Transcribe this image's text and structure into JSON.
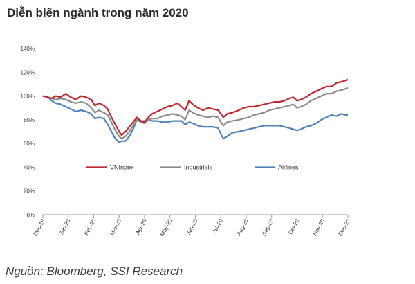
{
  "header": {
    "title": "Diễn biến ngành trong năm 2020"
  },
  "footer": {
    "source": "Nguồn: Bloomberg, SSI Research"
  },
  "chart_data": {
    "type": "line",
    "title": "Diễn biến ngành trong năm 2020",
    "xlabel": "",
    "ylabel": "",
    "x_ticks": [
      "Dec-19",
      "Jan-20",
      "Feb-20",
      "Mar-20",
      "Apr-20",
      "May-20",
      "Jun-20",
      "Jul-20",
      "Aug-20",
      "Sep-20",
      "Oct-20",
      "Nov-20",
      "Dec-20"
    ],
    "y_ticks": [
      "0%",
      "20%",
      "40%",
      "60%",
      "80%",
      "100%",
      "120%",
      "140%"
    ],
    "ylim": [
      0,
      140
    ],
    "grid": false,
    "legend_position": "center",
    "series": [
      {
        "name": "VNIndex",
        "color": "#c0272d",
        "points": [
          [
            0,
            100
          ],
          [
            0.2,
            99
          ],
          [
            0.35,
            98
          ],
          [
            0.5,
            100
          ],
          [
            0.7,
            99
          ],
          [
            0.9,
            102
          ],
          [
            1.1,
            99
          ],
          [
            1.3,
            97
          ],
          [
            1.5,
            100
          ],
          [
            1.7,
            99
          ],
          [
            1.9,
            97
          ],
          [
            2.05,
            92
          ],
          [
            2.2,
            94
          ],
          [
            2.4,
            92
          ],
          [
            2.55,
            89
          ],
          [
            2.7,
            82
          ],
          [
            2.85,
            76
          ],
          [
            3.0,
            70
          ],
          [
            3.1,
            67
          ],
          [
            3.25,
            70
          ],
          [
            3.4,
            74
          ],
          [
            3.55,
            78
          ],
          [
            3.7,
            82
          ],
          [
            3.85,
            79
          ],
          [
            4.0,
            78
          ],
          [
            4.15,
            82
          ],
          [
            4.3,
            85
          ],
          [
            4.5,
            87
          ],
          [
            4.7,
            89
          ],
          [
            4.9,
            91
          ],
          [
            5.1,
            92
          ],
          [
            5.3,
            94
          ],
          [
            5.45,
            91
          ],
          [
            5.6,
            88
          ],
          [
            5.75,
            96
          ],
          [
            5.9,
            93
          ],
          [
            6.1,
            90
          ],
          [
            6.3,
            88
          ],
          [
            6.5,
            90
          ],
          [
            6.7,
            89
          ],
          [
            6.9,
            88
          ],
          [
            7.0,
            85
          ],
          [
            7.1,
            82
          ],
          [
            7.25,
            85
          ],
          [
            7.45,
            86
          ],
          [
            7.7,
            88
          ],
          [
            7.9,
            90
          ],
          [
            8.1,
            91
          ],
          [
            8.3,
            91
          ],
          [
            8.5,
            92
          ],
          [
            8.7,
            93
          ],
          [
            8.9,
            94
          ],
          [
            9.1,
            95
          ],
          [
            9.3,
            95
          ],
          [
            9.5,
            96
          ],
          [
            9.7,
            98
          ],
          [
            9.85,
            99
          ],
          [
            10.0,
            96
          ],
          [
            10.15,
            97
          ],
          [
            10.35,
            99
          ],
          [
            10.55,
            102
          ],
          [
            10.75,
            104
          ],
          [
            10.95,
            106
          ],
          [
            11.15,
            108
          ],
          [
            11.35,
            108
          ],
          [
            11.55,
            111
          ],
          [
            11.75,
            112
          ],
          [
            11.9,
            113
          ],
          [
            12.0,
            114
          ]
        ]
      },
      {
        "name": "Industrials",
        "color": "#8c8c8c",
        "points": [
          [
            0,
            100
          ],
          [
            0.2,
            99
          ],
          [
            0.35,
            98
          ],
          [
            0.5,
            97
          ],
          [
            0.7,
            98
          ],
          [
            0.9,
            97
          ],
          [
            1.1,
            95
          ],
          [
            1.3,
            94
          ],
          [
            1.5,
            95
          ],
          [
            1.7,
            94
          ],
          [
            1.9,
            90
          ],
          [
            2.05,
            86
          ],
          [
            2.2,
            88
          ],
          [
            2.4,
            86
          ],
          [
            2.55,
            84
          ],
          [
            2.7,
            78
          ],
          [
            2.85,
            71
          ],
          [
            3.0,
            66
          ],
          [
            3.1,
            64
          ],
          [
            3.25,
            66
          ],
          [
            3.4,
            70
          ],
          [
            3.55,
            75
          ],
          [
            3.7,
            80
          ],
          [
            3.85,
            78
          ],
          [
            4.0,
            77
          ],
          [
            4.15,
            80
          ],
          [
            4.3,
            81
          ],
          [
            4.5,
            81
          ],
          [
            4.7,
            83
          ],
          [
            4.9,
            84
          ],
          [
            5.1,
            85
          ],
          [
            5.3,
            84
          ],
          [
            5.45,
            83
          ],
          [
            5.6,
            80
          ],
          [
            5.75,
            88
          ],
          [
            5.9,
            86
          ],
          [
            6.1,
            84
          ],
          [
            6.3,
            83
          ],
          [
            6.5,
            82
          ],
          [
            6.7,
            83
          ],
          [
            6.9,
            82
          ],
          [
            7.0,
            78
          ],
          [
            7.1,
            75
          ],
          [
            7.25,
            78
          ],
          [
            7.45,
            79
          ],
          [
            7.7,
            80
          ],
          [
            7.9,
            81
          ],
          [
            8.1,
            82
          ],
          [
            8.3,
            84
          ],
          [
            8.5,
            85
          ],
          [
            8.7,
            86
          ],
          [
            8.9,
            88
          ],
          [
            9.1,
            89
          ],
          [
            9.3,
            90
          ],
          [
            9.5,
            91
          ],
          [
            9.7,
            92
          ],
          [
            9.85,
            93
          ],
          [
            10.0,
            90
          ],
          [
            10.15,
            91
          ],
          [
            10.35,
            93
          ],
          [
            10.55,
            96
          ],
          [
            10.75,
            98
          ],
          [
            10.95,
            100
          ],
          [
            11.15,
            102
          ],
          [
            11.35,
            102
          ],
          [
            11.55,
            104
          ],
          [
            11.75,
            105
          ],
          [
            11.9,
            106
          ],
          [
            12.0,
            107
          ]
        ]
      },
      {
        "name": "Airlines",
        "color": "#4f81bd",
        "points": [
          [
            0,
            100
          ],
          [
            0.2,
            99
          ],
          [
            0.35,
            96
          ],
          [
            0.5,
            94
          ],
          [
            0.7,
            93
          ],
          [
            0.9,
            91
          ],
          [
            1.1,
            89
          ],
          [
            1.3,
            87
          ],
          [
            1.5,
            88
          ],
          [
            1.7,
            87
          ],
          [
            1.9,
            85
          ],
          [
            2.05,
            81
          ],
          [
            2.2,
            82
          ],
          [
            2.4,
            81
          ],
          [
            2.55,
            76
          ],
          [
            2.7,
            70
          ],
          [
            2.85,
            64
          ],
          [
            3.0,
            61
          ],
          [
            3.1,
            62
          ],
          [
            3.25,
            62
          ],
          [
            3.4,
            66
          ],
          [
            3.55,
            72
          ],
          [
            3.7,
            80
          ],
          [
            3.85,
            79
          ],
          [
            4.0,
            79
          ],
          [
            4.15,
            80
          ],
          [
            4.3,
            79
          ],
          [
            4.5,
            79
          ],
          [
            4.7,
            78
          ],
          [
            4.9,
            78
          ],
          [
            5.1,
            79
          ],
          [
            5.3,
            79
          ],
          [
            5.45,
            79
          ],
          [
            5.6,
            76
          ],
          [
            5.75,
            78
          ],
          [
            5.9,
            77
          ],
          [
            6.1,
            75
          ],
          [
            6.3,
            74
          ],
          [
            6.5,
            74
          ],
          [
            6.7,
            74
          ],
          [
            6.9,
            73
          ],
          [
            7.0,
            68
          ],
          [
            7.1,
            64
          ],
          [
            7.25,
            66
          ],
          [
            7.45,
            69
          ],
          [
            7.7,
            70
          ],
          [
            7.9,
            71
          ],
          [
            8.1,
            72
          ],
          [
            8.3,
            73
          ],
          [
            8.5,
            74
          ],
          [
            8.7,
            75
          ],
          [
            8.9,
            75
          ],
          [
            9.1,
            75
          ],
          [
            9.3,
            75
          ],
          [
            9.5,
            74
          ],
          [
            9.7,
            73
          ],
          [
            9.85,
            72
          ],
          [
            10.0,
            71
          ],
          [
            10.15,
            72
          ],
          [
            10.35,
            74
          ],
          [
            10.55,
            75
          ],
          [
            10.75,
            77
          ],
          [
            10.95,
            80
          ],
          [
            11.15,
            82
          ],
          [
            11.35,
            84
          ],
          [
            11.55,
            83
          ],
          [
            11.75,
            85
          ],
          [
            11.9,
            84
          ],
          [
            12.0,
            84
          ]
        ]
      }
    ]
  }
}
